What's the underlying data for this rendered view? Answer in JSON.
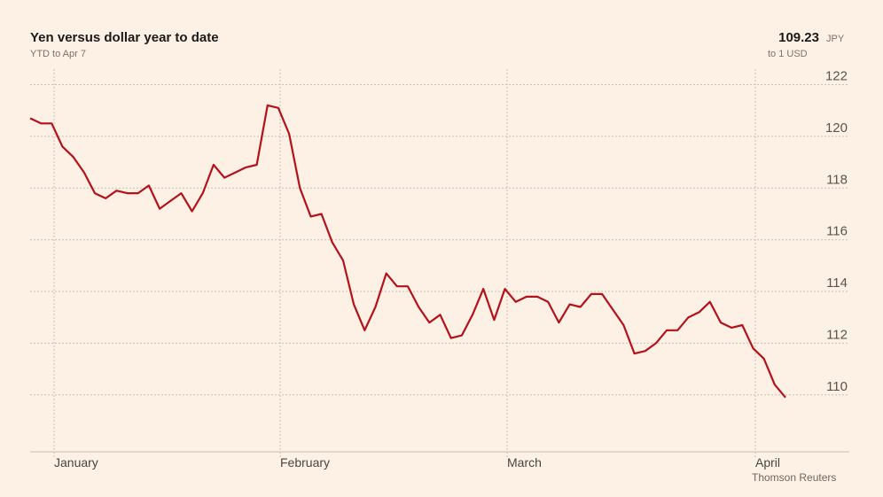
{
  "header": {
    "title": "Yen versus dollar year to date",
    "subtitle": "YTD to Apr 7",
    "latest_value": "109.23",
    "latest_unit": "JPY",
    "latest_unit_sub": "to 1 USD"
  },
  "source": "Thomson Reuters",
  "colors": {
    "background": "#fdf1e5",
    "line": "#b5111a",
    "grid": "#c9c0b4"
  },
  "chart_data": {
    "type": "line",
    "title": "Yen versus dollar year to date",
    "subtitle": "YTD to Apr 7",
    "ylim": [
      107.8,
      122.6
    ],
    "yticks": [
      110,
      112,
      114,
      116,
      118,
      120,
      122
    ],
    "ytick_labels": [
      "110",
      "112",
      "114",
      "116",
      "118",
      "120",
      "122"
    ],
    "xticks": [
      "January",
      "February",
      "March",
      "April"
    ],
    "grid": true,
    "series": [
      {
        "values": [
          120.7,
          120.5,
          120.5,
          119.6,
          119.2,
          118.6,
          117.8,
          117.6,
          117.9,
          117.8,
          117.8,
          118.1,
          117.2,
          117.5,
          117.8,
          117.1,
          117.8,
          118.9,
          118.4,
          118.6,
          118.8,
          118.9,
          121.2,
          121.1,
          120.1,
          118.0,
          116.9,
          117.0,
          115.9,
          115.2,
          113.5,
          112.5,
          113.4,
          114.7,
          114.2,
          114.2,
          113.4,
          112.8,
          113.1,
          112.2,
          112.3,
          113.1,
          114.1,
          112.9,
          114.1,
          113.6,
          113.8,
          113.8,
          113.6,
          112.8,
          113.5,
          113.4,
          113.9,
          113.9,
          113.3,
          112.7,
          111.6,
          111.7,
          112.0,
          112.5,
          112.5,
          113.0,
          113.2,
          113.6,
          112.8,
          112.6,
          112.7,
          111.8,
          111.4,
          110.4,
          109.9
        ]
      }
    ]
  }
}
